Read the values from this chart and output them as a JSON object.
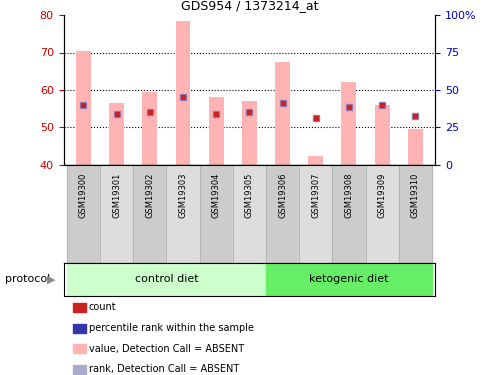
{
  "title": "GDS954 / 1373214_at",
  "samples": [
    "GSM19300",
    "GSM19301",
    "GSM19302",
    "GSM19303",
    "GSM19304",
    "GSM19305",
    "GSM19306",
    "GSM19307",
    "GSM19308",
    "GSM19309",
    "GSM19310"
  ],
  "pink_bar_tops": [
    70.5,
    56.5,
    59.5,
    78.5,
    58.0,
    57.0,
    67.5,
    42.5,
    62.0,
    56.0,
    49.5
  ],
  "blue_dot_y": [
    56.0,
    53.5,
    54.0,
    58.2,
    53.5,
    54.0,
    56.5,
    52.5,
    55.5,
    56.0,
    53.0
  ],
  "red_dot_y": [
    56.0,
    53.5,
    54.0,
    58.2,
    53.5,
    54.0,
    56.5,
    52.5,
    55.5,
    56.0,
    53.0
  ],
  "ylim": [
    40,
    80
  ],
  "yticks_left": [
    40,
    50,
    60,
    70,
    80
  ],
  "bar_bottom": 40,
  "pink_color": "#FFB3B3",
  "blue_dot_color": "#8888CC",
  "red_dot_color": "#CC2222",
  "control_color": "#CCFFCC",
  "ketogenic_color": "#66EE66",
  "label_bg_even": "#CCCCCC",
  "label_bg_odd": "#DDDDDD",
  "legend_items": [
    {
      "label": "count",
      "color": "#CC2222"
    },
    {
      "label": "percentile rank within the sample",
      "color": "#3333AA"
    },
    {
      "label": "value, Detection Call = ABSENT",
      "color": "#FFB3B3"
    },
    {
      "label": "rank, Detection Call = ABSENT",
      "color": "#AAAACC"
    }
  ],
  "left_tick_color": "#CC0000",
  "right_tick_color": "#0000CC",
  "grid_color": "black",
  "right_labels": [
    "0",
    "25",
    "50",
    "75",
    "100%"
  ]
}
